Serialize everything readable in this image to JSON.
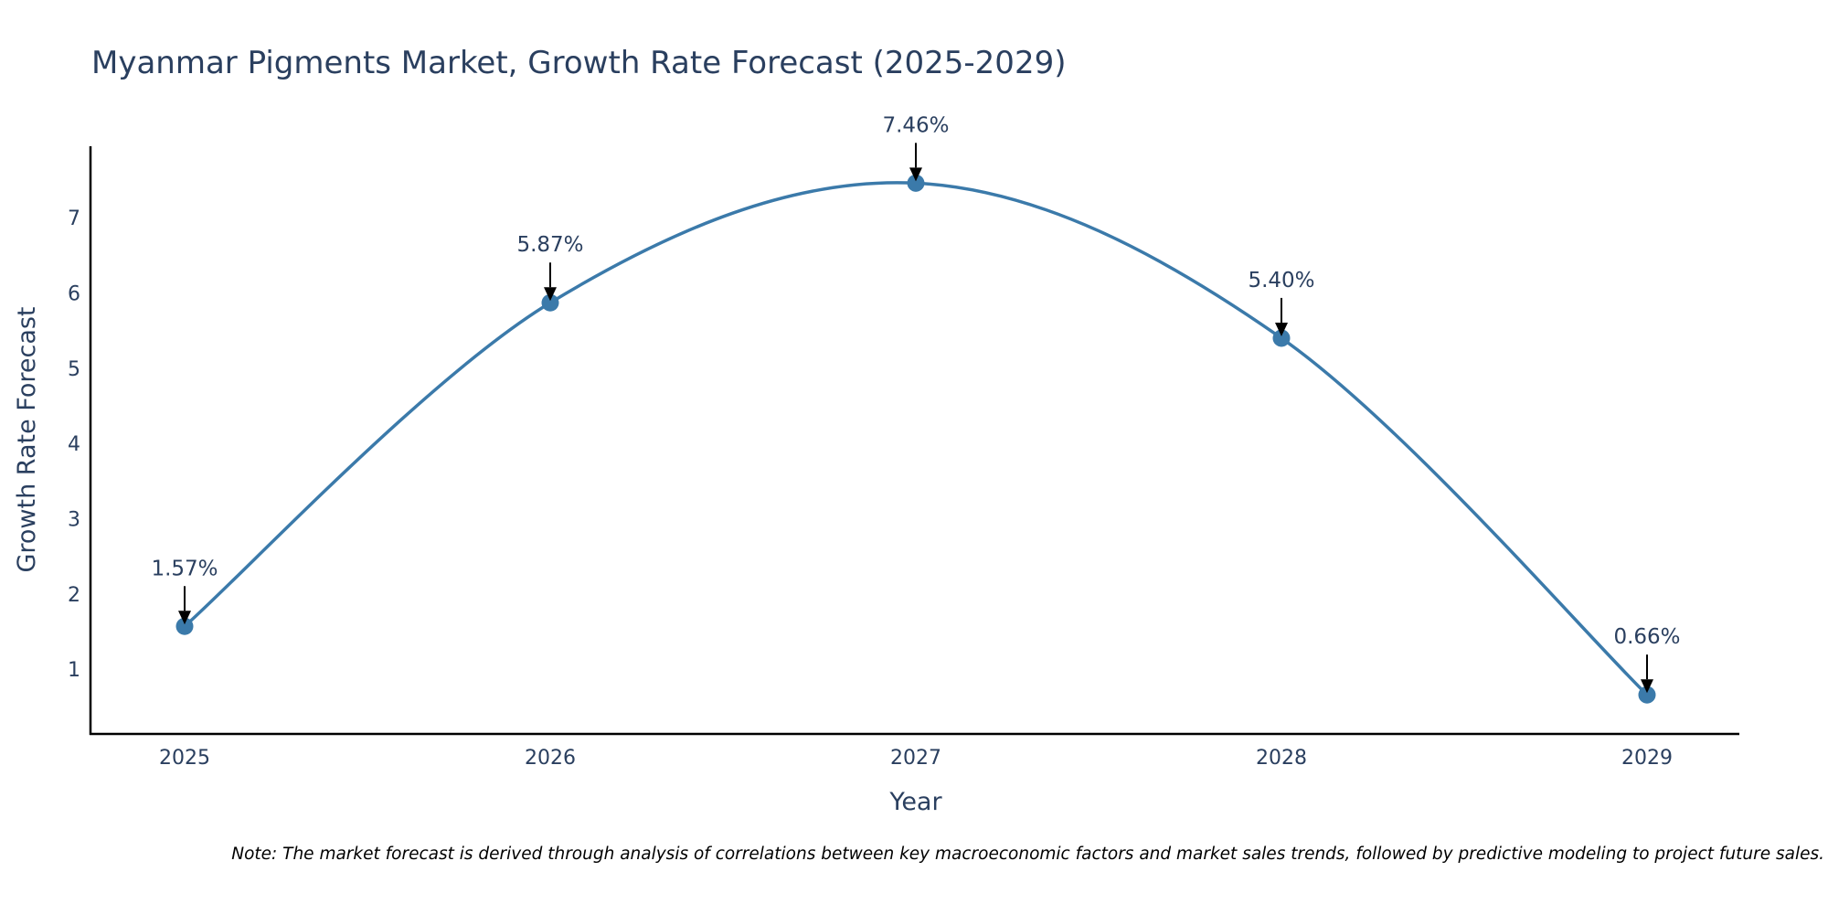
{
  "chart_data": {
    "type": "line",
    "title": "Myanmar Pigments Market, Growth Rate Forecast (2025-2029)",
    "xlabel": "Year",
    "ylabel": "Growth Rate Forecast",
    "categories": [
      "2025",
      "2026",
      "2027",
      "2028",
      "2029"
    ],
    "values": [
      1.57,
      5.87,
      7.46,
      5.4,
      0.66
    ],
    "data_labels": [
      "1.57%",
      "5.87%",
      "7.46%",
      "5.40%",
      "0.66%"
    ],
    "y_ticks": [
      1,
      2,
      3,
      4,
      5,
      6,
      7
    ],
    "ylim": [
      0.14,
      7.95
    ],
    "line_color": "#3b7aaa",
    "marker_color": "#3b7aaa",
    "arrow_color": "#000000",
    "line_shape": "spline",
    "grid": false,
    "note": "Note: The market forecast is derived through analysis of correlations between key macroeconomic factors and market sales trends, followed by predictive modeling to project future sales."
  }
}
